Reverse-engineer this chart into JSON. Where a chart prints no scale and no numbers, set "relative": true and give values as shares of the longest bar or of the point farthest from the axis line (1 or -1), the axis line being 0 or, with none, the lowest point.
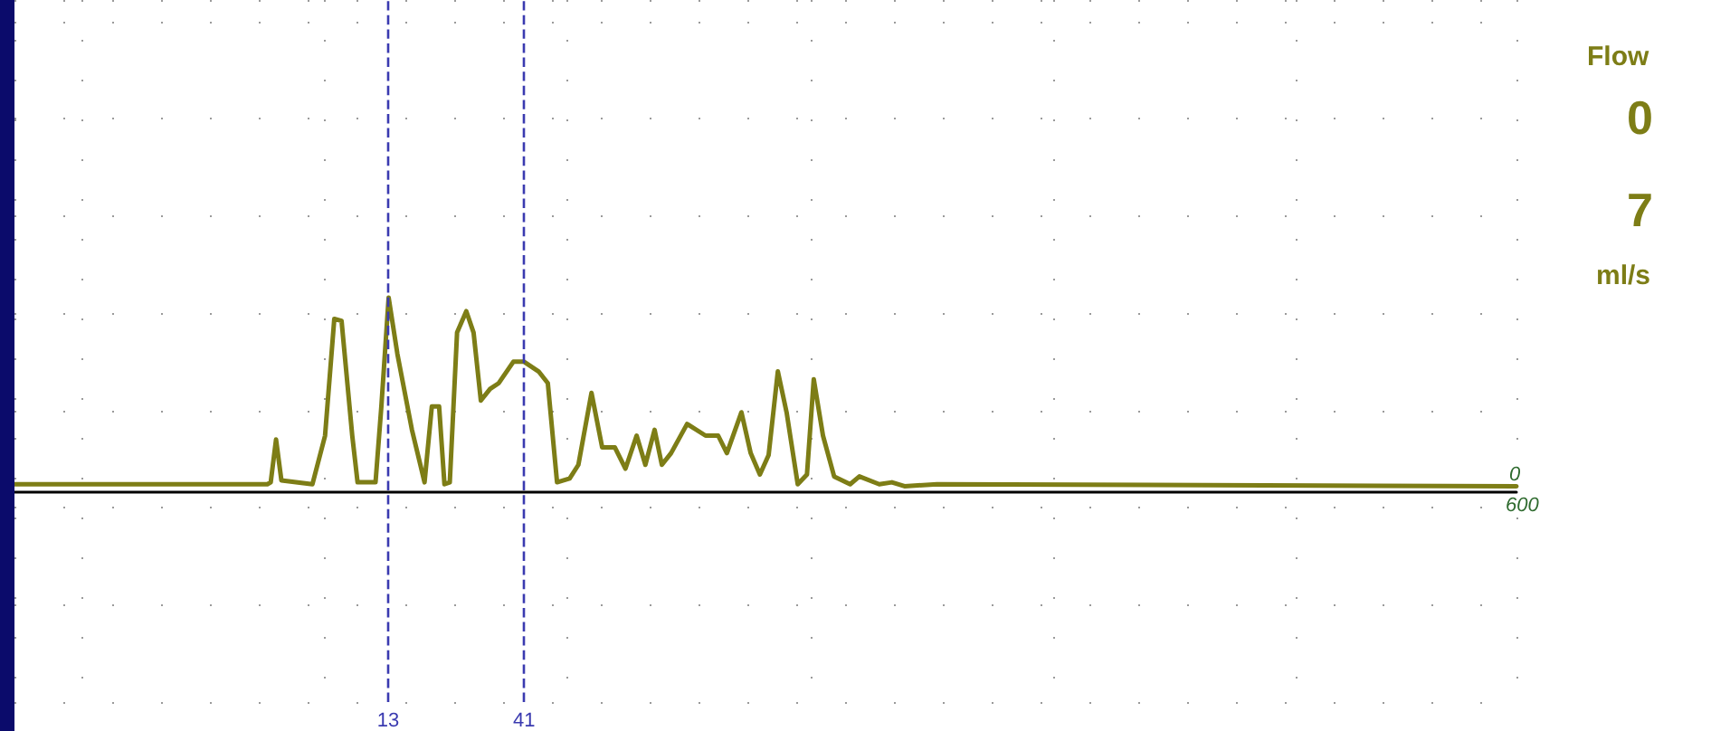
{
  "chart_data": {
    "type": "line",
    "relative": true,
    "color": "#7d7d16",
    "x": [
      -64,
      -11.9,
      -11.2,
      -10.1,
      -9.0,
      -2.6,
      0,
      1.9,
      3.4,
      5.6,
      6.7,
      10.4,
      11.6,
      13.1,
      14.9,
      17.9,
      20.5,
      22.0,
      23.5,
      24.6,
      25.7,
      27.2,
      29.1,
      30.6,
      32.1,
      34.0,
      35.8,
      38.8,
      41.0,
      44.0,
      45.9,
      47.8,
      50.4,
      52.2,
      54.9,
      57.1,
      59.7,
      61.9,
      64.2,
      66.0,
      67.9,
      69.4,
      71.3,
      74.6,
      78.4,
      81.0,
      82.8,
      85.8,
      87.7,
      89.6,
      91.4,
      93.3,
      95.1,
      97.4,
      99.3,
      100.7,
      102.6,
      104.9,
      108.2,
      110.1,
      114.2,
      116.8,
      119.4,
      126.1,
      245.5
    ],
    "values": [
      0.04,
      0.04,
      0.05,
      0.27,
      0.06,
      0.04,
      0.29,
      0.89,
      0.88,
      0.29,
      0.05,
      0.05,
      0.44,
      1.0,
      0.71,
      0.32,
      0.05,
      0.44,
      0.44,
      0.04,
      0.05,
      0.82,
      0.93,
      0.82,
      0.47,
      0.53,
      0.56,
      0.67,
      0.67,
      0.62,
      0.56,
      0.05,
      0.07,
      0.14,
      0.51,
      0.23,
      0.23,
      0.12,
      0.29,
      0.14,
      0.32,
      0.14,
      0.2,
      0.35,
      0.29,
      0.29,
      0.2,
      0.41,
      0.2,
      0.09,
      0.19,
      0.62,
      0.41,
      0.04,
      0.09,
      0.58,
      0.29,
      0.08,
      0.04,
      0.08,
      0.04,
      0.05,
      0.03,
      0.04,
      0.03
    ],
    "xlim": [
      -64,
      245.5
    ],
    "xticks": [
      13,
      41
    ],
    "line_style": "solid",
    "marker": "none",
    "grid": true,
    "ref_lines": [
      {
        "axis": "x",
        "value": 13,
        "color": "#3a3ab0",
        "line_style": "dashed"
      },
      {
        "axis": "x",
        "value": 41,
        "color": "#3a3ab0",
        "line_style": "dashed"
      }
    ],
    "annotations": [
      "0",
      "600",
      "Flow",
      "0",
      "7",
      "ml/s"
    ]
  }
}
